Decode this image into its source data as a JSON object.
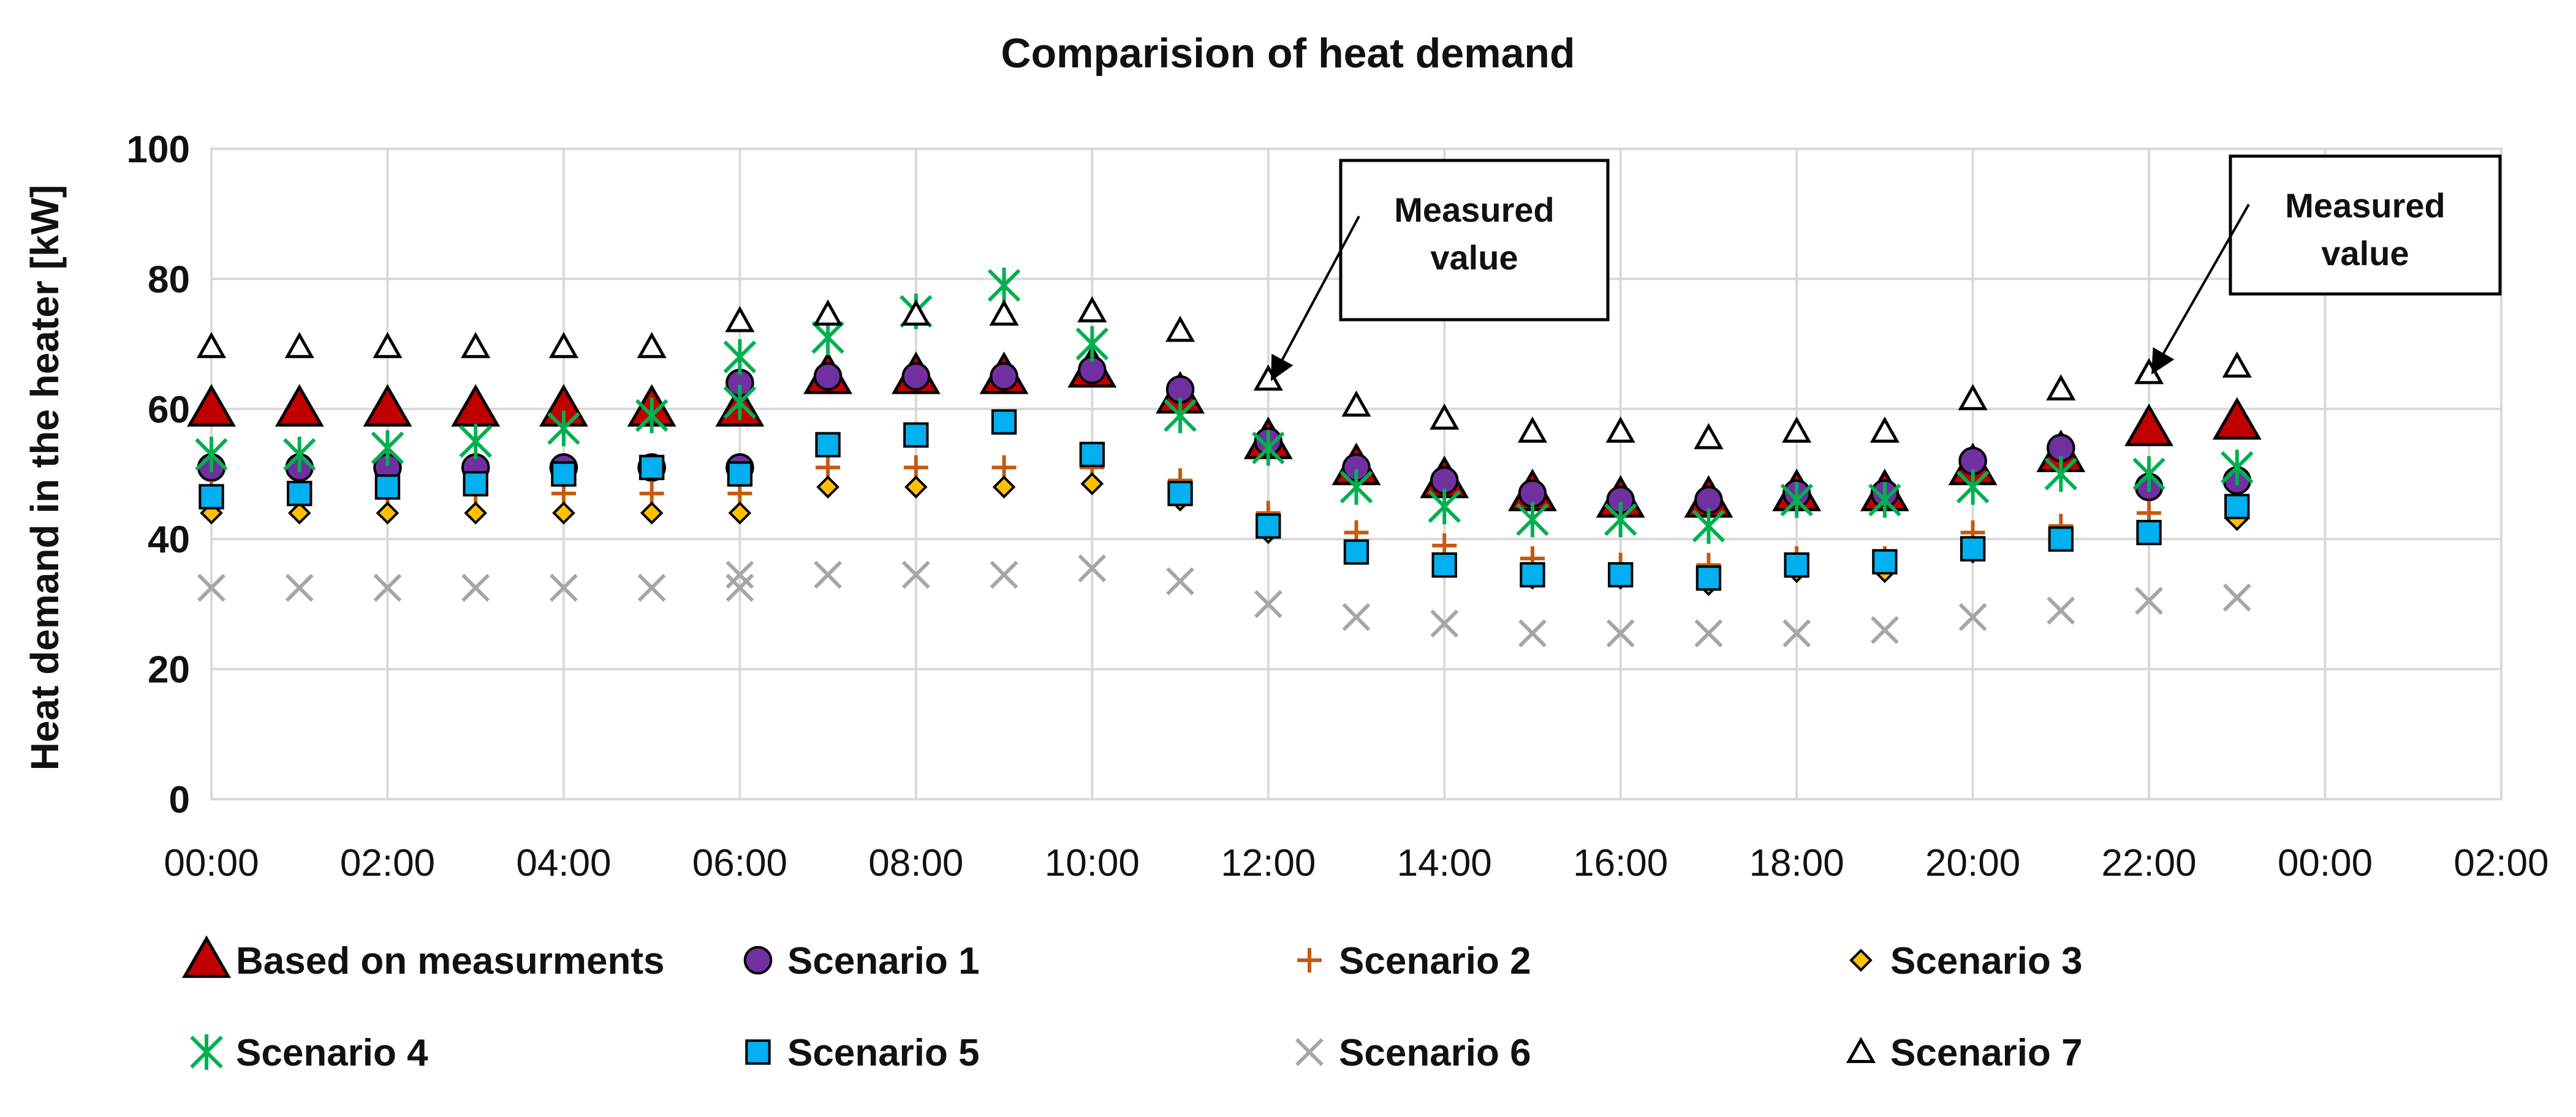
{
  "chart_data": {
    "type": "scatter",
    "title": "Comparision of heat demand",
    "xlabel": "",
    "ylabel": "Heat demand in the heater [kW]",
    "ylim": [
      0,
      100
    ],
    "yticks": [
      0,
      20,
      40,
      60,
      80,
      100
    ],
    "xlim": [
      0,
      26
    ],
    "xticks": [
      {
        "x": 0,
        "label": "00:00"
      },
      {
        "x": 2,
        "label": "02:00"
      },
      {
        "x": 4,
        "label": "04:00"
      },
      {
        "x": 6,
        "label": "06:00"
      },
      {
        "x": 8,
        "label": "08:00"
      },
      {
        "x": 10,
        "label": "10:00"
      },
      {
        "x": 12,
        "label": "12:00"
      },
      {
        "x": 14,
        "label": "14:00"
      },
      {
        "x": 16,
        "label": "16:00"
      },
      {
        "x": 18,
        "label": "18:00"
      },
      {
        "x": 20,
        "label": "20:00"
      },
      {
        "x": 22,
        "label": "22:00"
      },
      {
        "x": 24,
        "label": "00:00"
      },
      {
        "x": 26,
        "label": "02:00"
      }
    ],
    "grid": "horizontal and vertical",
    "legend": "bottom",
    "annotations": [
      {
        "text_lines": [
          "Measured",
          "value"
        ],
        "points_to": {
          "x": 12,
          "y": 64
        }
      },
      {
        "text_lines": [
          "Measured",
          "value"
        ],
        "points_to": {
          "x": 22,
          "y": 65
        }
      }
    ],
    "series": [
      {
        "name": "Based on measurments",
        "marker": "triangle-filled",
        "color": "#c00000",
        "x": [
          0,
          1,
          2,
          3,
          4,
          5,
          6,
          7,
          8,
          9,
          10,
          11,
          12,
          13,
          14,
          15,
          16,
          17,
          18,
          19,
          20,
          21,
          22,
          23
        ],
        "values": [
          60,
          60,
          60,
          60,
          60,
          60,
          60,
          65,
          65,
          65,
          66,
          62,
          55,
          51,
          49,
          47,
          46,
          46,
          47,
          47,
          51,
          53,
          57,
          58
        ]
      },
      {
        "name": "Scenario 1",
        "marker": "circle",
        "color": "#7030a0",
        "x": [
          0,
          1,
          2,
          3,
          4,
          5,
          6,
          6,
          7,
          8,
          9,
          10,
          11,
          12,
          13,
          14,
          15,
          16,
          17,
          18,
          19,
          20,
          21,
          22,
          23
        ],
        "values": [
          51,
          51,
          51,
          51,
          51,
          51,
          51,
          64,
          65,
          65,
          65,
          66,
          63,
          55,
          51,
          49,
          47,
          46,
          46,
          47,
          47,
          52,
          54,
          48,
          49
        ]
      },
      {
        "name": "Scenario 2",
        "marker": "plus",
        "color": "#c55a11",
        "x": [
          0,
          1,
          2,
          3,
          4,
          5,
          6,
          7,
          8,
          9,
          10,
          11,
          12,
          13,
          14,
          15,
          16,
          17,
          18,
          19,
          20,
          21,
          22,
          23
        ],
        "values": [
          47,
          47,
          47,
          47,
          47,
          47,
          47,
          51,
          51,
          51,
          51,
          49,
          44,
          41,
          39,
          37,
          36,
          36,
          37,
          37,
          41,
          42,
          44,
          45
        ]
      },
      {
        "name": "Scenario 3",
        "marker": "diamond",
        "color": "#ffc000",
        "x": [
          0,
          1,
          2,
          3,
          4,
          5,
          6,
          7,
          8,
          9,
          10,
          11,
          12,
          13,
          14,
          15,
          16,
          17,
          18,
          19,
          20,
          21,
          22,
          23
        ],
        "values": [
          44,
          44,
          44,
          44,
          44,
          44,
          44,
          48,
          48,
          48,
          48.5,
          46,
          41,
          38,
          36,
          34,
          34,
          33,
          35,
          35,
          38,
          40,
          41,
          43
        ]
      },
      {
        "name": "Scenario 4",
        "marker": "asterisk",
        "color": "#00b050",
        "x": [
          0,
          1,
          2,
          3,
          4,
          5,
          6,
          6,
          7,
          8,
          9,
          10,
          11,
          12,
          13,
          14,
          15,
          16,
          17,
          18,
          19,
          20,
          21,
          22,
          23
        ],
        "values": [
          53,
          53,
          54,
          55,
          57,
          59,
          61,
          68,
          71,
          75,
          79,
          70,
          59,
          54,
          48,
          45,
          43,
          43,
          42,
          46,
          46,
          48,
          50,
          50,
          51
        ]
      },
      {
        "name": "Scenario 5",
        "marker": "square",
        "color": "#00b0f0",
        "x": [
          0,
          1,
          2,
          3,
          4,
          5,
          6,
          7,
          8,
          9,
          10,
          11,
          12,
          13,
          14,
          15,
          16,
          17,
          18,
          19,
          20,
          21,
          22,
          23
        ],
        "values": [
          46.5,
          47,
          48,
          48.5,
          50,
          51,
          50,
          54.5,
          56,
          58,
          53,
          47,
          42,
          38,
          36,
          34.5,
          34.5,
          34,
          36,
          36.5,
          38.5,
          40,
          41,
          45
        ]
      },
      {
        "name": "Scenario 6",
        "marker": "cross",
        "color": "#a6a6a6",
        "x": [
          0,
          1,
          2,
          3,
          4,
          5,
          6,
          6,
          7,
          8,
          9,
          10,
          11,
          12,
          13,
          14,
          15,
          16,
          17,
          18,
          19,
          20,
          21,
          22,
          23
        ],
        "values": [
          32.5,
          32.5,
          32.5,
          32.5,
          32.5,
          32.5,
          32.5,
          34.5,
          34.5,
          34.5,
          34.5,
          35.5,
          33.5,
          30,
          28,
          27,
          25.5,
          25.5,
          25.5,
          25.5,
          26,
          28,
          29,
          30.5,
          31
        ]
      },
      {
        "name": "Scenario 7",
        "marker": "triangle-open",
        "color": "#000000",
        "x": [
          0,
          1,
          2,
          3,
          4,
          5,
          6,
          7,
          8,
          9,
          10,
          11,
          12,
          13,
          14,
          15,
          16,
          17,
          18,
          19,
          20,
          21,
          22,
          23
        ],
        "values": [
          69.5,
          69.5,
          69.5,
          69.5,
          69.5,
          69.5,
          73.5,
          74.5,
          74.5,
          74.5,
          75,
          72,
          64.5,
          60.5,
          58.5,
          56.5,
          56.5,
          55.5,
          56.5,
          56.5,
          61.5,
          63,
          65.5,
          66.5
        ]
      }
    ]
  }
}
